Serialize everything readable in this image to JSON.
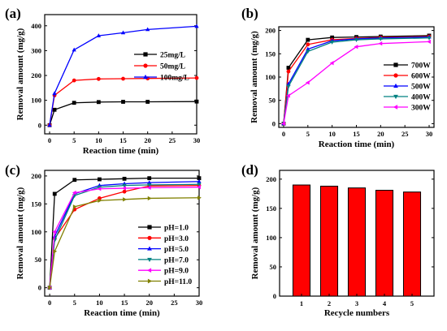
{
  "chart_data": [
    {
      "panel": "(a)",
      "type": "line",
      "xlabel": "Reaction time (min)",
      "ylabel": "Removal amount (mg/g)",
      "xlim": [
        -1,
        30
      ],
      "ylim": [
        -35,
        445
      ],
      "xticks": [
        0,
        5,
        10,
        15,
        20,
        25,
        30
      ],
      "yticks": [
        0,
        100,
        200,
        300,
        400
      ],
      "legend": "right-center",
      "x": [
        0,
        1,
        5,
        10,
        15,
        20,
        30
      ],
      "series": [
        {
          "name": "25mg/L",
          "color": "#000000",
          "marker": "square",
          "values": [
            0,
            62,
            90,
            93,
            94,
            94,
            95
          ]
        },
        {
          "name": "50mg/L",
          "color": "#ff0000",
          "marker": "circle",
          "values": [
            0,
            120,
            180,
            186,
            187,
            188,
            190
          ]
        },
        {
          "name": "100mg/L",
          "color": "#0000ff",
          "marker": "triangle",
          "values": [
            0,
            128,
            303,
            360,
            372,
            385,
            398
          ]
        }
      ]
    },
    {
      "panel": "(b)",
      "type": "line",
      "xlabel": "Reaction time (min)",
      "ylabel": "Removal amount (mg/g)",
      "xlim": [
        -1,
        31
      ],
      "ylim": [
        -8,
        208
      ],
      "xticks": [
        0,
        5,
        10,
        15,
        20,
        25,
        30
      ],
      "yticks": [
        0,
        50,
        100,
        150,
        200
      ],
      "legend": "right-bottom",
      "x": [
        0,
        1,
        5,
        10,
        15,
        20,
        30
      ],
      "series": [
        {
          "name": "700W",
          "color": "#000000",
          "marker": "square",
          "values": [
            0,
            120,
            180,
            185,
            186,
            187,
            189
          ]
        },
        {
          "name": "600W",
          "color": "#ff0000",
          "marker": "circle",
          "values": [
            0,
            112,
            170,
            180,
            183,
            185,
            187
          ]
        },
        {
          "name": "500W",
          "color": "#0000ff",
          "marker": "triangle",
          "values": [
            0,
            85,
            160,
            178,
            182,
            184,
            186
          ]
        },
        {
          "name": "400W",
          "color": "#008080",
          "marker": "triangle-down",
          "values": [
            0,
            80,
            155,
            175,
            180,
            182,
            184
          ]
        },
        {
          "name": "300W",
          "color": "#ff00ff",
          "marker": "triangle-left",
          "values": [
            0,
            60,
            88,
            130,
            165,
            172,
            176
          ]
        }
      ]
    },
    {
      "panel": "(c)",
      "type": "line",
      "xlabel": "Reaction time (min)",
      "ylabel": "Removal amount (mg/g)",
      "xlim": [
        -1,
        30
      ],
      "ylim": [
        -15,
        210
      ],
      "xticks": [
        0,
        5,
        10,
        15,
        20,
        25,
        30
      ],
      "yticks": [
        0,
        50,
        100,
        150,
        200
      ],
      "legend": "right-bottom",
      "x": [
        0,
        1,
        5,
        10,
        15,
        20,
        30
      ],
      "series": [
        {
          "name": "pH=1.0",
          "color": "#000000",
          "marker": "square",
          "values": [
            0,
            168,
            193,
            194,
            195,
            196,
            196
          ]
        },
        {
          "name": "pH=3.0",
          "color": "#ff0000",
          "marker": "circle",
          "values": [
            0,
            88,
            140,
            160,
            172,
            182,
            183
          ]
        },
        {
          "name": "pH=5.0",
          "color": "#0000ff",
          "marker": "triangle",
          "values": [
            0,
            92,
            168,
            183,
            186,
            188,
            190
          ]
        },
        {
          "name": "pH=7.0",
          "color": "#008080",
          "marker": "triangle-down",
          "values": [
            0,
            85,
            165,
            180,
            183,
            184,
            185
          ]
        },
        {
          "name": "pH=9.0",
          "color": "#ff00ff",
          "marker": "triangle-left",
          "values": [
            0,
            100,
            170,
            177,
            178,
            179,
            180
          ]
        },
        {
          "name": "pH=11.0",
          "color": "#808000",
          "marker": "triangle-right",
          "values": [
            0,
            65,
            145,
            156,
            158,
            160,
            161
          ]
        }
      ]
    },
    {
      "panel": "(d)",
      "type": "bar",
      "xlabel": "Recycle numbers",
      "ylabel": "Removal amount (mg/g)",
      "ylim": [
        0,
        215
      ],
      "yticks": [
        0,
        50,
        100,
        150,
        200
      ],
      "categories": [
        "1",
        "2",
        "3",
        "4",
        "5"
      ],
      "color": "#ff0000",
      "values": [
        190,
        188,
        185,
        181,
        178
      ]
    }
  ]
}
